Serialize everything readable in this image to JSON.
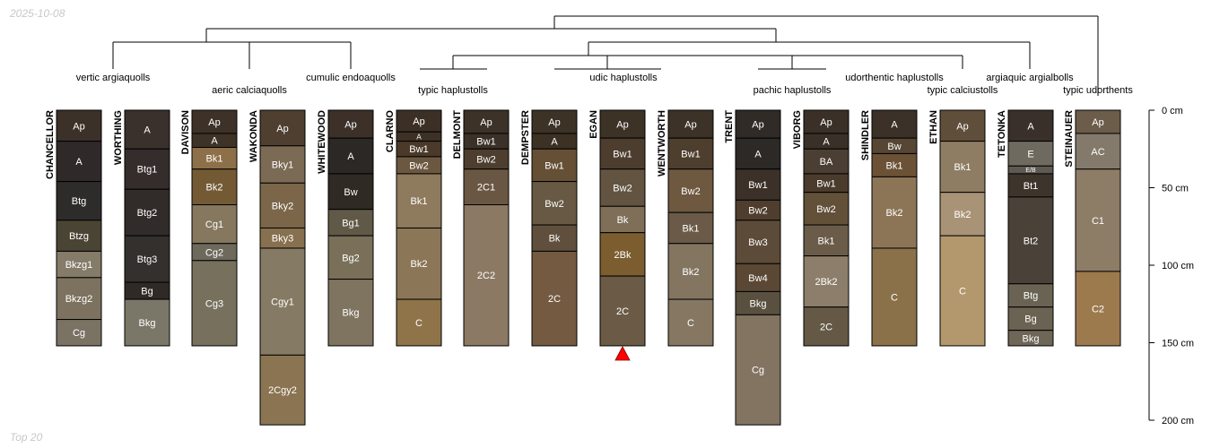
{
  "date_stamp": "2025-10-08",
  "footer": "Top 20",
  "depth_axis": {
    "unit": "cm",
    "ticks": [
      0,
      50,
      100,
      150,
      200
    ],
    "tick_labels": [
      "0 cm",
      "50 cm",
      "100 cm",
      "150 cm",
      "200 cm"
    ]
  },
  "taxa": [
    {
      "label": "vertic argiaquolls"
    },
    {
      "label": "aeric calciaquolls"
    },
    {
      "label": "cumulic endoaquolls"
    },
    {
      "label": "typic haplustolls"
    },
    {
      "label": "udic haplustolls"
    },
    {
      "label": "pachic haplustolls"
    },
    {
      "label": "udorthentic haplustolls"
    },
    {
      "label": "typic calciustolls"
    },
    {
      "label": "argiaquic argialbolls"
    },
    {
      "label": "typic udorthents"
    }
  ],
  "profiles": [
    {
      "name": "CHANCELLOR",
      "horizons": [
        {
          "name": "Ap",
          "top": 0,
          "bottom": 20,
          "color": "#3b3128"
        },
        {
          "name": "A",
          "top": 20,
          "bottom": 46,
          "color": "#30292a"
        },
        {
          "name": "Btg",
          "top": 46,
          "bottom": 71,
          "color": "#2e2c2b"
        },
        {
          "name": "Btzg",
          "top": 71,
          "bottom": 91,
          "color": "#4a4434"
        },
        {
          "name": "Bkzg1",
          "top": 91,
          "bottom": 108,
          "color": "#857b69"
        },
        {
          "name": "Bkzg2",
          "top": 108,
          "bottom": 135,
          "color": "#7c725f"
        },
        {
          "name": "Cg",
          "top": 135,
          "bottom": 152,
          "color": "#7a7263"
        }
      ]
    },
    {
      "name": "WORTHING",
      "horizons": [
        {
          "name": "A",
          "top": 0,
          "bottom": 25,
          "color": "#3a312c"
        },
        {
          "name": "Btg1",
          "top": 25,
          "bottom": 51,
          "color": "#342d2b"
        },
        {
          "name": "Btg2",
          "top": 51,
          "bottom": 81,
          "color": "#312b29"
        },
        {
          "name": "Btg3",
          "top": 81,
          "bottom": 111,
          "color": "#33302e"
        },
        {
          "name": "Bg",
          "top": 111,
          "bottom": 122,
          "color": "#302a26"
        },
        {
          "name": "Bkg",
          "top": 122,
          "bottom": 152,
          "color": "#7b7768"
        }
      ]
    },
    {
      "name": "DAVISON",
      "horizons": [
        {
          "name": "Ap",
          "top": 0,
          "bottom": 15,
          "color": "#3e3228"
        },
        {
          "name": "A",
          "top": 15,
          "bottom": 24,
          "color": "#3f3226"
        },
        {
          "name": "Bk1",
          "top": 24,
          "bottom": 38,
          "color": "#8d7049"
        },
        {
          "name": "Bk2",
          "top": 38,
          "bottom": 61,
          "color": "#735a35"
        },
        {
          "name": "Cg1",
          "top": 61,
          "bottom": 86,
          "color": "#85785f"
        },
        {
          "name": "Cg2",
          "top": 86,
          "bottom": 97,
          "color": "#6d6a5c"
        },
        {
          "name": "Cg3",
          "top": 97,
          "bottom": 152,
          "color": "#76705d"
        }
      ]
    },
    {
      "name": "WAKONDA",
      "horizons": [
        {
          "name": "Ap",
          "top": 0,
          "bottom": 23,
          "color": "#4e3f31"
        },
        {
          "name": "Bky1",
          "top": 23,
          "bottom": 47,
          "color": "#7b6a54"
        },
        {
          "name": "Bky2",
          "top": 47,
          "bottom": 76,
          "color": "#7b6649"
        },
        {
          "name": "Bky3",
          "top": 76,
          "bottom": 89,
          "color": "#87704f"
        },
        {
          "name": "Cgy1",
          "top": 89,
          "bottom": 158,
          "color": "#857a63"
        },
        {
          "name": "2Cgy2",
          "top": 158,
          "bottom": 203,
          "color": "#8a7452"
        }
      ]
    },
    {
      "name": "WHITEWOOD",
      "horizons": [
        {
          "name": "Ap",
          "top": 0,
          "bottom": 18,
          "color": "#3c3029"
        },
        {
          "name": "A",
          "top": 18,
          "bottom": 41,
          "color": "#2c2826"
        },
        {
          "name": "Bw",
          "top": 41,
          "bottom": 64,
          "color": "#2f2a24"
        },
        {
          "name": "Bg1",
          "top": 64,
          "bottom": 81,
          "color": "#605947"
        },
        {
          "name": "Bg2",
          "top": 81,
          "bottom": 109,
          "color": "#7a7059"
        },
        {
          "name": "Bkg",
          "top": 109,
          "bottom": 152,
          "color": "#7f7460"
        }
      ]
    },
    {
      "name": "CLARNO",
      "horizons": [
        {
          "name": "Ap",
          "top": 0,
          "bottom": 14,
          "color": "#3c3026"
        },
        {
          "name": "A",
          "top": 14,
          "bottom": 20,
          "color": "#3d3126"
        },
        {
          "name": "Bw1",
          "top": 20,
          "bottom": 30,
          "color": "#4b3a2a"
        },
        {
          "name": "Bw2",
          "top": 30,
          "bottom": 41,
          "color": "#6c5840"
        },
        {
          "name": "Bk1",
          "top": 41,
          "bottom": 76,
          "color": "#8e7a5c"
        },
        {
          "name": "Bk2",
          "top": 76,
          "bottom": 122,
          "color": "#8b7657"
        },
        {
          "name": "C",
          "top": 122,
          "bottom": 152,
          "color": "#8e7448"
        }
      ]
    },
    {
      "name": "DELMONT",
      "horizons": [
        {
          "name": "Ap",
          "top": 0,
          "bottom": 15,
          "color": "#3c3227"
        },
        {
          "name": "Bw1",
          "top": 15,
          "bottom": 25,
          "color": "#3c3128"
        },
        {
          "name": "Bw2",
          "top": 25,
          "bottom": 38,
          "color": "#4d3e2f"
        },
        {
          "name": "2C1",
          "top": 38,
          "bottom": 61,
          "color": "#6a5743"
        },
        {
          "name": "2C2",
          "top": 61,
          "bottom": 152,
          "color": "#8c7964"
        }
      ]
    },
    {
      "name": "DEMPSTER",
      "horizons": [
        {
          "name": "Ap",
          "top": 0,
          "bottom": 15,
          "color": "#3d3226"
        },
        {
          "name": "A",
          "top": 15,
          "bottom": 25,
          "color": "#3d3124"
        },
        {
          "name": "Bw1",
          "top": 25,
          "bottom": 46,
          "color": "#654f35"
        },
        {
          "name": "Bw2",
          "top": 46,
          "bottom": 74,
          "color": "#675943"
        },
        {
          "name": "Bk",
          "top": 74,
          "bottom": 91,
          "color": "#5f4f3c"
        },
        {
          "name": "2C",
          "top": 91,
          "bottom": 152,
          "color": "#735a41"
        }
      ]
    },
    {
      "name": "EGAN",
      "horizons": [
        {
          "name": "Ap",
          "top": 0,
          "bottom": 18,
          "color": "#3d3226"
        },
        {
          "name": "Bw1",
          "top": 18,
          "bottom": 38,
          "color": "#4c3d2f"
        },
        {
          "name": "Bw2",
          "top": 38,
          "bottom": 62,
          "color": "#625440"
        },
        {
          "name": "Bk",
          "top": 62,
          "bottom": 79,
          "color": "#7f6e58"
        },
        {
          "name": "2Bk",
          "top": 79,
          "bottom": 107,
          "color": "#7b5d2f"
        },
        {
          "name": "2C",
          "top": 107,
          "bottom": 152,
          "color": "#6b5b46"
        }
      ]
    },
    {
      "name": "WENTWORTH",
      "horizons": [
        {
          "name": "Ap",
          "top": 0,
          "bottom": 18,
          "color": "#3c3227"
        },
        {
          "name": "Bw1",
          "top": 18,
          "bottom": 38,
          "color": "#4e3e2d"
        },
        {
          "name": "Bw2",
          "top": 38,
          "bottom": 66,
          "color": "#6e5840"
        },
        {
          "name": "Bk1",
          "top": 66,
          "bottom": 86,
          "color": "#6b5a48"
        },
        {
          "name": "Bk2",
          "top": 86,
          "bottom": 122,
          "color": "#837560"
        },
        {
          "name": "C",
          "top": 122,
          "bottom": 152,
          "color": "#867762"
        }
      ]
    },
    {
      "name": "TRENT",
      "horizons": [
        {
          "name": "Ap",
          "top": 0,
          "bottom": 18,
          "color": "#312b28"
        },
        {
          "name": "A",
          "top": 18,
          "bottom": 38,
          "color": "#2c2927"
        },
        {
          "name": "Bw1",
          "top": 38,
          "bottom": 58,
          "color": "#3c3128"
        },
        {
          "name": "Bw2",
          "top": 58,
          "bottom": 71,
          "color": "#4f3e2e"
        },
        {
          "name": "Bw3",
          "top": 71,
          "bottom": 99,
          "color": "#5d4b39"
        },
        {
          "name": "Bw4",
          "top": 99,
          "bottom": 117,
          "color": "#5a4834"
        },
        {
          "name": "Bkg",
          "top": 117,
          "bottom": 132,
          "color": "#59503f"
        },
        {
          "name": "Cg",
          "top": 132,
          "bottom": 203,
          "color": "#827461"
        }
      ]
    },
    {
      "name": "VIBORG",
      "horizons": [
        {
          "name": "Ap",
          "top": 0,
          "bottom": 15,
          "color": "#3a3028"
        },
        {
          "name": "A",
          "top": 15,
          "bottom": 25,
          "color": "#3a3027"
        },
        {
          "name": "BA",
          "top": 25,
          "bottom": 41,
          "color": "#4b3f33"
        },
        {
          "name": "Bw1",
          "top": 41,
          "bottom": 53,
          "color": "#4a3b2c"
        },
        {
          "name": "Bw2",
          "top": 53,
          "bottom": 74,
          "color": "#625039"
        },
        {
          "name": "Bk1",
          "top": 74,
          "bottom": 94,
          "color": "#6b5b49"
        },
        {
          "name": "2Bk2",
          "top": 94,
          "bottom": 127,
          "color": "#8c7e6a"
        },
        {
          "name": "2C",
          "top": 127,
          "bottom": 152,
          "color": "#655946"
        }
      ]
    },
    {
      "name": "SHINDLER",
      "horizons": [
        {
          "name": "A",
          "top": 0,
          "bottom": 18,
          "color": "#3b3128"
        },
        {
          "name": "Bw",
          "top": 18,
          "bottom": 28,
          "color": "#574634"
        },
        {
          "name": "Bk1",
          "top": 28,
          "bottom": 43,
          "color": "#6b5236"
        },
        {
          "name": "Bk2",
          "top": 43,
          "bottom": 89,
          "color": "#8c7556"
        },
        {
          "name": "C",
          "top": 89,
          "bottom": 152,
          "color": "#8a7149"
        }
      ]
    },
    {
      "name": "ETHAN",
      "horizons": [
        {
          "name": "Ap",
          "top": 0,
          "bottom": 20,
          "color": "#5f4e3a"
        },
        {
          "name": "Bk1",
          "top": 20,
          "bottom": 53,
          "color": "#8e7d63"
        },
        {
          "name": "Bk2",
          "top": 53,
          "bottom": 81,
          "color": "#a99376"
        },
        {
          "name": "C",
          "top": 81,
          "bottom": 152,
          "color": "#b2986c"
        }
      ]
    },
    {
      "name": "TETONKA",
      "horizons": [
        {
          "name": "A",
          "top": 0,
          "bottom": 20,
          "color": "#3a302a"
        },
        {
          "name": "E",
          "top": 20,
          "bottom": 36,
          "color": "#6f6a5f"
        },
        {
          "name": "E/B",
          "top": 36,
          "bottom": 41,
          "color": "#5f5952"
        },
        {
          "name": "Bt1",
          "top": 41,
          "bottom": 56,
          "color": "#3d342c"
        },
        {
          "name": "Bt2",
          "top": 56,
          "bottom": 112,
          "color": "#4a4138"
        },
        {
          "name": "Btg",
          "top": 112,
          "bottom": 127,
          "color": "#6a6353"
        },
        {
          "name": "Bg",
          "top": 127,
          "bottom": 142,
          "color": "#6a6252"
        },
        {
          "name": "Bkg",
          "top": 142,
          "bottom": 152,
          "color": "#6e6656"
        }
      ]
    },
    {
      "name": "STEINAUER",
      "horizons": [
        {
          "name": "Ap",
          "top": 0,
          "bottom": 15,
          "color": "#6c5c4a"
        },
        {
          "name": "AC",
          "top": 15,
          "bottom": 38,
          "color": "#847a6c"
        },
        {
          "name": "C1",
          "top": 38,
          "bottom": 104,
          "color": "#8d7c66"
        },
        {
          "name": "C2",
          "top": 104,
          "bottom": 152,
          "color": "#9c7a4e"
        }
      ]
    }
  ]
}
